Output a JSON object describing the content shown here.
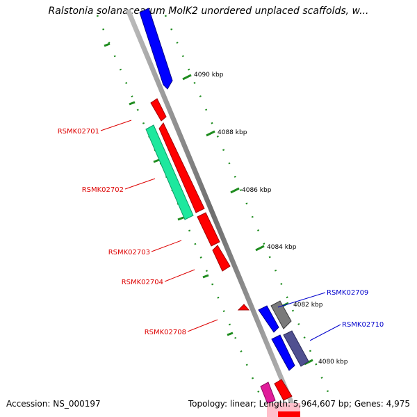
{
  "title": "Ralstonia solanacearum MolK2 unordered unplaced scaffolds, w...",
  "footer": {
    "accession": "Accession: NS_000197",
    "summary": "Topology: linear; Length: 5,964,607 bp; Genes: 4,975"
  },
  "colors": {
    "backbone": "#8c8c8c",
    "tick": "#1e8c1e",
    "red": "#ff0000",
    "blue": "#0000ff",
    "teal": "#1de89e",
    "gray": "#7a7a7a",
    "slate": "#505090",
    "magenta": "#e01c9a",
    "pink": "#ffc0cb",
    "label_red": "#dd0000",
    "label_blue": "#0000cc"
  },
  "scale_labels": [
    "4090 kbp",
    "4088 kbp",
    "4086 kbp",
    "4084 kbp",
    "4082 kbp",
    "4080 kbp"
  ],
  "genes": [
    {
      "label": "RSMK02701",
      "color": "red"
    },
    {
      "label": "RSMK02702",
      "color": "teal"
    },
    {
      "label": "RSMK02703",
      "color": "red"
    },
    {
      "label": "RSMK02704",
      "color": "red"
    },
    {
      "label": "RSMK02708",
      "color": "red"
    },
    {
      "label": "RSMK02709",
      "color": "gray"
    },
    {
      "label": "RSMK02710",
      "color": "slate"
    }
  ]
}
